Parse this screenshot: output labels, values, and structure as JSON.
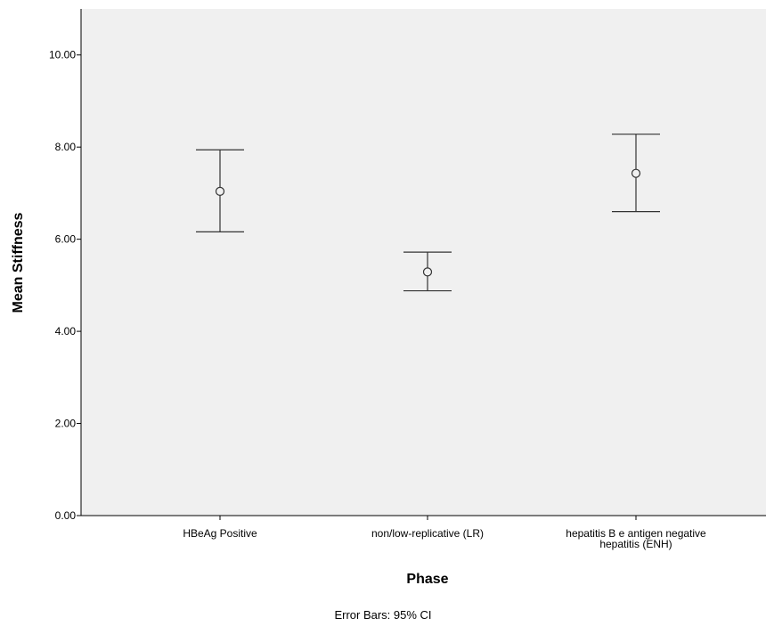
{
  "chart_data": {
    "type": "scatter",
    "subtype": "error-bar",
    "title": "",
    "xlabel": "Phase",
    "ylabel": "Mean Stiffness",
    "ylim": [
      0,
      11
    ],
    "yticks": [
      0,
      2,
      4,
      6,
      8,
      10
    ],
    "ytick_labels": [
      "0.00",
      "2.00",
      "4.00",
      "6.00",
      "8.00",
      "10.00"
    ],
    "categories": [
      [
        "HBeAg Positive"
      ],
      [
        "non/low-replicative (LR)"
      ],
      [
        "hepatitis B e antigen negative",
        "hepatitis (ENH)"
      ]
    ],
    "series": [
      {
        "mean": [
          7.04,
          5.29,
          7.43
        ],
        "ci_low": [
          6.16,
          4.88,
          6.6
        ],
        "ci_high": [
          7.94,
          5.72,
          8.28
        ]
      }
    ],
    "plot_background": "#f0f0f0",
    "marker": "open-circle",
    "grid": false,
    "footnote": "Error Bars: 95% CI"
  }
}
